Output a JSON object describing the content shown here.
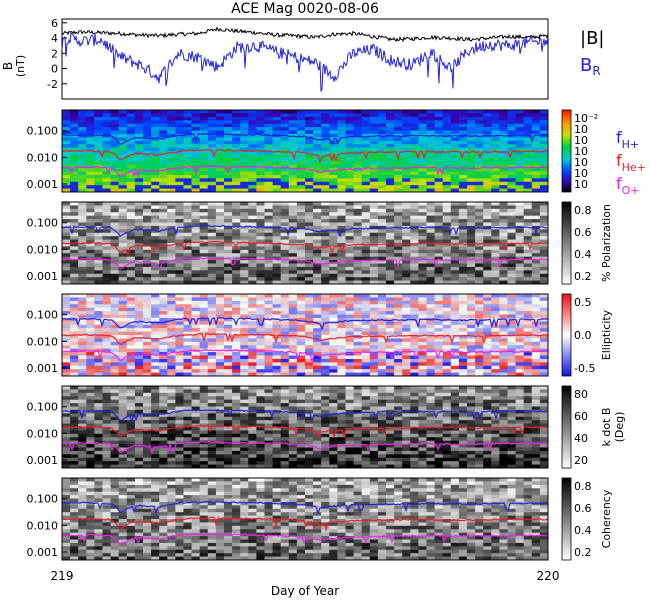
{
  "chart_data": {
    "title": "ACE Mag 0020-08-06",
    "xlabel": "Day of Year",
    "x_ticks": [
      "219",
      "220"
    ],
    "xlim": [
      219,
      220
    ],
    "panels": [
      {
        "id": "mag",
        "type": "line",
        "ylabel": "B",
        "yunit": "(nT)",
        "ylim": [
          -4,
          6.5
        ],
        "y_ticks": [
          "6",
          "4",
          "2",
          "0",
          "-2"
        ],
        "legend": [
          {
            "text": "|B|",
            "color": "#000000"
          },
          {
            "text": "B",
            "sub": "R",
            "color": "#2222dd"
          }
        ],
        "series": [
          {
            "name": "|B|",
            "color": "#000000",
            "x": [
              219.0,
              219.04,
              219.08,
              219.12,
              219.16,
              219.2,
              219.24,
              219.28,
              219.32,
              219.36,
              219.4,
              219.44,
              219.48,
              219.52,
              219.56,
              219.6,
              219.64,
              219.68,
              219.72,
              219.76,
              219.8,
              219.84,
              219.88,
              219.92,
              219.96,
              220.0
            ],
            "y": [
              4.6,
              4.8,
              4.7,
              4.6,
              4.4,
              4.3,
              4.5,
              4.6,
              5.2,
              4.9,
              4.7,
              4.4,
              4.3,
              4.1,
              4.5,
              4.6,
              4.2,
              3.8,
              3.9,
              4.1,
              4.0,
              3.8,
              4.0,
              4.2,
              4.1,
              4.3
            ]
          },
          {
            "name": "B_R",
            "color": "#2222dd",
            "x": [
              219.0,
              219.04,
              219.08,
              219.12,
              219.16,
              219.2,
              219.24,
              219.28,
              219.32,
              219.36,
              219.4,
              219.44,
              219.48,
              219.52,
              219.56,
              219.6,
              219.64,
              219.68,
              219.72,
              219.76,
              219.8,
              219.84,
              219.88,
              219.92,
              219.96,
              220.0
            ],
            "y": [
              4.2,
              3.6,
              3.8,
              1.5,
              0.5,
              -1.2,
              2.0,
              1.5,
              0.2,
              2.8,
              3.0,
              2.2,
              1.5,
              0.8,
              -1.0,
              2.0,
              2.5,
              1.0,
              0.5,
              2.2,
              0.0,
              2.5,
              3.2,
              3.0,
              3.4,
              3.6
            ]
          }
        ]
      },
      {
        "id": "power",
        "type": "heatmap",
        "ylabel": "",
        "ylim_log": [
          0.0005,
          0.6
        ],
        "y_ticks": [
          "0.100",
          "0.010",
          "0.001"
        ],
        "colorbar": {
          "scale": "rainbow",
          "ticks": [
            "10⁻²",
            "10",
            "10",
            "10",
            "10",
            "10",
            "10"
          ]
        },
        "legend": [
          {
            "text": "f",
            "sub": "H+",
            "color": "#2222dd"
          },
          {
            "text": "f",
            "sub": "He+",
            "color": "#ee2222"
          },
          {
            "text": "f",
            "sub": "O+",
            "color": "#ee22ee"
          }
        ]
      },
      {
        "id": "polarization",
        "type": "heatmap",
        "ylabel": "",
        "y_ticks": [
          "0.100",
          "0.010",
          "0.001"
        ],
        "colorbar": {
          "scale": "gray",
          "label": "% Polarization",
          "ticks": [
            "0.8",
            "0.6",
            "0.4",
            "0.2"
          ]
        }
      },
      {
        "id": "ellipticity",
        "type": "heatmap",
        "ylabel": "",
        "y_ticks": [
          "0.100",
          "0.010",
          "0.001"
        ],
        "colorbar": {
          "scale": "bluewhitered",
          "label": "Ellipticity",
          "ticks": [
            "0.5",
            "0.0",
            "-0.5"
          ]
        }
      },
      {
        "id": "kdotb",
        "type": "heatmap",
        "ylabel": "",
        "y_ticks": [
          "0.100",
          "0.010",
          "0.001"
        ],
        "colorbar": {
          "scale": "gray",
          "label": "k dot B",
          "label2": "(Deg)",
          "ticks": [
            "80",
            "60",
            "40",
            "20"
          ]
        }
      },
      {
        "id": "coherency",
        "type": "heatmap",
        "ylabel": "",
        "y_ticks": [
          "0.100",
          "0.010",
          "0.001"
        ],
        "colorbar": {
          "scale": "gray",
          "label": "Coherency",
          "ticks": [
            "0.8",
            "0.6",
            "0.4",
            "0.2"
          ]
        }
      }
    ],
    "gyrofrequency_lines": [
      {
        "name": "f_H+",
        "color": "#2222dd",
        "x": [
          219.0,
          219.05,
          219.1,
          219.12,
          219.15,
          219.2,
          219.25,
          219.3,
          219.35,
          219.4,
          219.45,
          219.5,
          219.53,
          219.55,
          219.6,
          219.65,
          219.7,
          219.75,
          219.8,
          219.85,
          219.9,
          219.95,
          220.0
        ],
        "y": [
          0.068,
          0.07,
          0.066,
          0.03,
          0.055,
          0.05,
          0.07,
          0.075,
          0.072,
          0.07,
          0.066,
          0.06,
          0.045,
          0.05,
          0.06,
          0.062,
          0.064,
          0.066,
          0.064,
          0.063,
          0.066,
          0.067,
          0.068
        ]
      },
      {
        "name": "f_He+",
        "color": "#ee2222",
        "x": [
          219.0,
          219.05,
          219.1,
          219.12,
          219.15,
          219.2,
          219.25,
          219.3,
          219.35,
          219.4,
          219.45,
          219.5,
          219.53,
          219.55,
          219.6,
          219.65,
          219.7,
          219.75,
          219.8,
          219.85,
          219.9,
          219.95,
          220.0
        ],
        "y": [
          0.017,
          0.0175,
          0.0165,
          0.0075,
          0.014,
          0.0125,
          0.0175,
          0.019,
          0.018,
          0.0175,
          0.0165,
          0.015,
          0.011,
          0.0125,
          0.015,
          0.0155,
          0.016,
          0.0165,
          0.016,
          0.0158,
          0.0165,
          0.0168,
          0.017
        ]
      },
      {
        "name": "f_O+",
        "color": "#ee22ee",
        "x": [
          219.0,
          219.05,
          219.1,
          219.12,
          219.15,
          219.2,
          219.25,
          219.3,
          219.35,
          219.4,
          219.45,
          219.5,
          219.53,
          219.55,
          219.6,
          219.65,
          219.7,
          219.75,
          219.8,
          219.85,
          219.9,
          219.95,
          220.0
        ],
        "y": [
          0.0042,
          0.0044,
          0.0041,
          0.0019,
          0.0035,
          0.0031,
          0.0044,
          0.0047,
          0.0045,
          0.0044,
          0.0041,
          0.0037,
          0.0028,
          0.0031,
          0.0037,
          0.0039,
          0.004,
          0.0041,
          0.004,
          0.0039,
          0.0041,
          0.0042,
          0.0042
        ]
      }
    ]
  }
}
